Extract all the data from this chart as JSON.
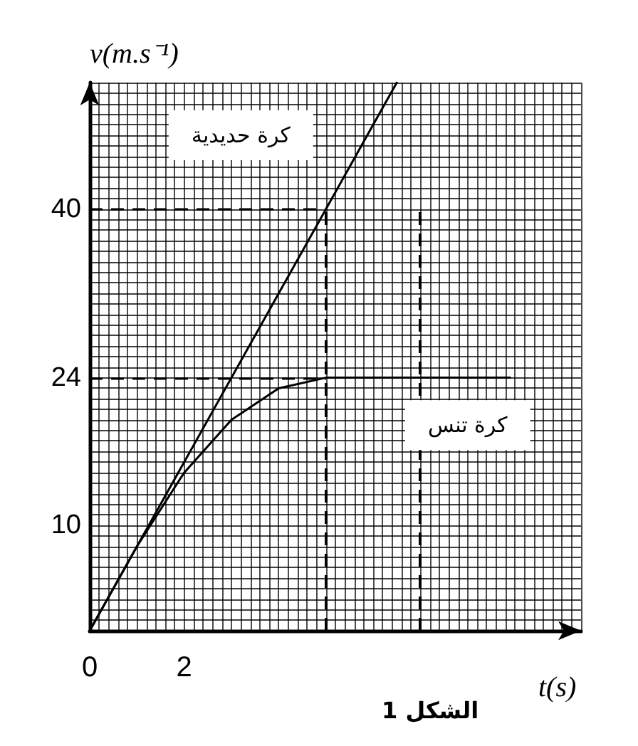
{
  "chart_data": {
    "type": "line",
    "title": "الشكل 1",
    "xlabel": "t(s)",
    "ylabel": "v(m.s⁻¹)",
    "xlim": [
      0,
      10.4
    ],
    "xticks": [
      0,
      2
    ],
    "ylim": [
      0,
      52
    ],
    "yticks": [
      10,
      24,
      40
    ],
    "grid": true,
    "marker": "none",
    "line_style": "solid",
    "series": [
      {
        "name": "كرة حديدية",
        "color": "#000000",
        "x": [
          0,
          5,
          6.5
        ],
        "values": [
          0,
          40,
          52
        ]
      },
      {
        "name": "كرة تنس",
        "color": "#000000",
        "x": [
          0,
          1,
          2,
          3,
          4,
          5,
          8.9
        ],
        "values": [
          0,
          8,
          15,
          20,
          23,
          24,
          24
        ]
      }
    ],
    "ref_lines": [
      {
        "axis": "y",
        "value": 40,
        "line_style": "dashed"
      },
      {
        "axis": "y",
        "value": 24,
        "line_style": "dashed"
      },
      {
        "axis": "x",
        "value": 5,
        "line_style": "dashed"
      },
      {
        "axis": "x",
        "value": 7,
        "line_style": "dashed"
      }
    ]
  }
}
